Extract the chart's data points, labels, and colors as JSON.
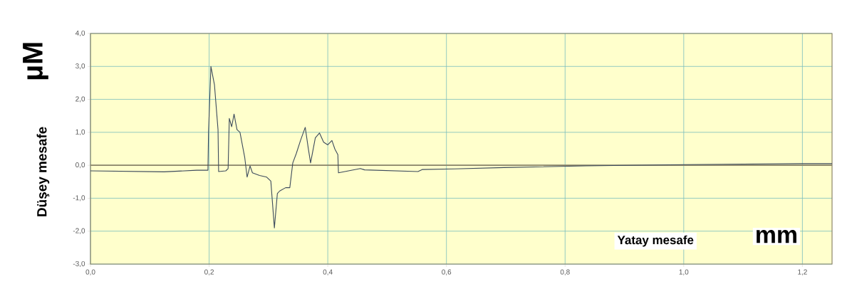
{
  "chart_data": {
    "type": "line",
    "xlabel": "Yatay mesafe",
    "ylabel": "Düşey mesafe",
    "annotations": [
      "µM",
      "mm"
    ],
    "xlim": [
      0,
      1.25
    ],
    "ylim": [
      -3,
      4
    ],
    "xticks": [
      {
        "value": 0,
        "label": "0,0"
      },
      {
        "value": 0.2,
        "label": "0,2"
      },
      {
        "value": 0.4,
        "label": "0,4"
      },
      {
        "value": 0.6,
        "label": "0,6"
      },
      {
        "value": 0.8,
        "label": "0,8"
      },
      {
        "value": 1.0,
        "label": "1,0"
      },
      {
        "value": 1.2,
        "label": "1,2"
      }
    ],
    "yticks": [
      {
        "value": -3,
        "label": "-3,0"
      },
      {
        "value": -2,
        "label": "-2,0"
      },
      {
        "value": -1,
        "label": "-1,0"
      },
      {
        "value": 0,
        "label": "0,0"
      },
      {
        "value": 1,
        "label": "1,0"
      },
      {
        "value": 2,
        "label": "2,0"
      },
      {
        "value": 3,
        "label": "3,0"
      },
      {
        "value": 4,
        "label": "4,0"
      }
    ],
    "grid": true,
    "ref_lines": [
      {
        "axis": "y",
        "value": 0,
        "color": "#8c8468"
      }
    ],
    "series": [
      {
        "color": "#3c4a5c",
        "x": [
          0,
          0.124,
          0.179,
          0.198,
          0.199,
          0.203,
          0.209,
          0.215,
          0.216,
          0.228,
          0.232,
          0.234,
          0.238,
          0.242,
          0.247,
          0.252,
          0.26,
          0.264,
          0.269,
          0.273,
          0.285,
          0.297,
          0.304,
          0.31,
          0.315,
          0.319,
          0.329,
          0.336,
          0.341,
          0.347,
          0.354,
          0.362,
          0.367,
          0.371,
          0.379,
          0.386,
          0.393,
          0.4,
          0.407,
          0.412,
          0.417,
          0.418,
          0.455,
          0.462,
          0.552,
          0.559,
          0.614,
          0.697,
          0.835,
          1.0,
          1.2,
          1.25
        ],
        "values": [
          -0.17,
          -0.2,
          -0.15,
          -0.15,
          1.0,
          3.0,
          2.44,
          1.08,
          -0.19,
          -0.17,
          -0.1,
          1.42,
          1.17,
          1.55,
          1.08,
          1.0,
          0.24,
          -0.36,
          -0.02,
          -0.23,
          -0.31,
          -0.36,
          -0.48,
          -1.9,
          -0.86,
          -0.78,
          -0.68,
          -0.68,
          0.07,
          0.36,
          0.75,
          1.15,
          0.53,
          0.07,
          0.83,
          0.98,
          0.7,
          0.62,
          0.75,
          0.49,
          0.32,
          -0.23,
          -0.1,
          -0.14,
          -0.19,
          -0.13,
          -0.11,
          -0.07,
          -0.02,
          0.02,
          0.05,
          0.05
        ]
      }
    ]
  }
}
